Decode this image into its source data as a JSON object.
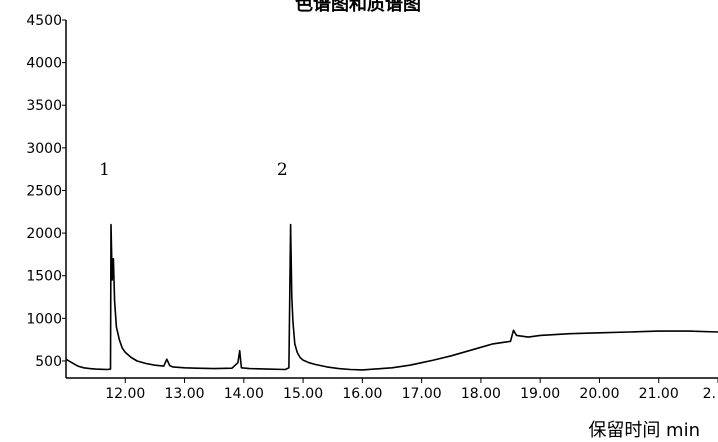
{
  "chart_data": {
    "type": "line",
    "title": "色谱图和质谱图",
    "xlabel": "保留时间 min",
    "ylabel": "",
    "xlim": [
      11.0,
      22.0
    ],
    "ylim": [
      300,
      4500
    ],
    "x_ticks": [
      "12.00",
      "13.00",
      "14.00",
      "15.00",
      "16.00",
      "17.00",
      "18.00",
      "19.00",
      "20.00",
      "21.00",
      "2."
    ],
    "y_ticks": [
      "500",
      "1000",
      "1500",
      "2000",
      "2500",
      "3000",
      "3500",
      "4000",
      "4500"
    ],
    "annotations": [
      {
        "text": "1",
        "x": 11.65,
        "y": 2680
      },
      {
        "text": "2",
        "x": 14.65,
        "y": 2680
      }
    ],
    "grid": false,
    "legend": "none",
    "series": [
      {
        "color": "#000000",
        "x": [
          11.0,
          11.05,
          11.1,
          11.15,
          11.2,
          11.3,
          11.4,
          11.5,
          11.6,
          11.7,
          11.75,
          11.76,
          11.78,
          11.8,
          11.82,
          11.85,
          11.9,
          11.95,
          12.0,
          12.1,
          12.2,
          12.35,
          12.5,
          12.65,
          12.7,
          12.75,
          12.8,
          13.0,
          13.2,
          13.5,
          13.8,
          13.9,
          13.93,
          13.96,
          14.1,
          14.4,
          14.7,
          14.76,
          14.79,
          14.81,
          14.83,
          14.86,
          14.9,
          14.95,
          15.0,
          15.1,
          15.2,
          15.4,
          15.6,
          15.8,
          16.0,
          16.2,
          16.5,
          16.8,
          17.0,
          17.2,
          17.5,
          17.8,
          18.0,
          18.2,
          18.4,
          18.5,
          18.55,
          18.6,
          18.8,
          19.0,
          19.5,
          20.0,
          20.5,
          21.0,
          21.5,
          22.0
        ],
        "y": [
          520,
          500,
          480,
          460,
          440,
          420,
          410,
          405,
          402,
          400,
          405,
          2100,
          1450,
          1700,
          1200,
          900,
          750,
          650,
          600,
          540,
          500,
          470,
          450,
          440,
          520,
          445,
          430,
          420,
          415,
          410,
          415,
          480,
          620,
          420,
          410,
          405,
          400,
          420,
          2100,
          1250,
          950,
          700,
          600,
          540,
          510,
          480,
          460,
          430,
          410,
          400,
          395,
          405,
          420,
          450,
          480,
          510,
          560,
          620,
          660,
          700,
          720,
          730,
          860,
          800,
          780,
          800,
          820,
          830,
          840,
          850,
          850,
          840
        ]
      }
    ]
  }
}
